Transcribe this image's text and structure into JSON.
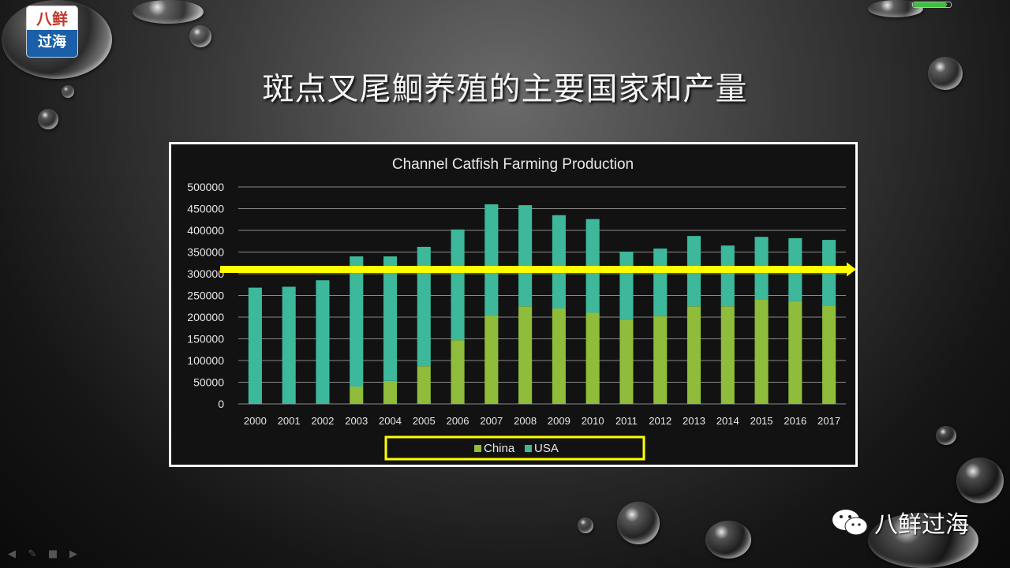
{
  "slide": {
    "title": "斑点叉尾鮰养殖的主要国家和产量",
    "logo_top": "八鲜",
    "logo_bottom": "过海",
    "brand_name": "八鲜过海",
    "progress": 0.9
  },
  "colors": {
    "china": "#8fbc3a",
    "usa": "#3db89b",
    "highlight": "#ffff00",
    "frame": "#ffffff"
  },
  "chart_data": {
    "type": "bar",
    "stacked": true,
    "title": "Channel Catfish Farming Production",
    "categories": [
      "2000",
      "2001",
      "2002",
      "2003",
      "2004",
      "2005",
      "2006",
      "2007",
      "2008",
      "2009",
      "2010",
      "2011",
      "2012",
      "2013",
      "2014",
      "2015",
      "2016",
      "2017"
    ],
    "series": [
      {
        "name": "China",
        "values": [
          0,
          0,
          0,
          40000,
          53000,
          87000,
          147000,
          205000,
          225000,
          220000,
          210000,
          195000,
          203000,
          225000,
          225000,
          240000,
          237000,
          227000
        ]
      },
      {
        "name": "USA",
        "values": [
          268000,
          270000,
          285000,
          300000,
          287000,
          275000,
          255000,
          255000,
          233000,
          215000,
          216000,
          156000,
          155000,
          162000,
          140000,
          145000,
          145000,
          151000
        ]
      }
    ],
    "yticks": [
      0,
      50000,
      100000,
      150000,
      200000,
      250000,
      300000,
      350000,
      400000,
      450000,
      500000
    ],
    "ylim": [
      0,
      500000
    ],
    "grid": true,
    "legend": "bottom",
    "highlight_line_value": 310000
  }
}
